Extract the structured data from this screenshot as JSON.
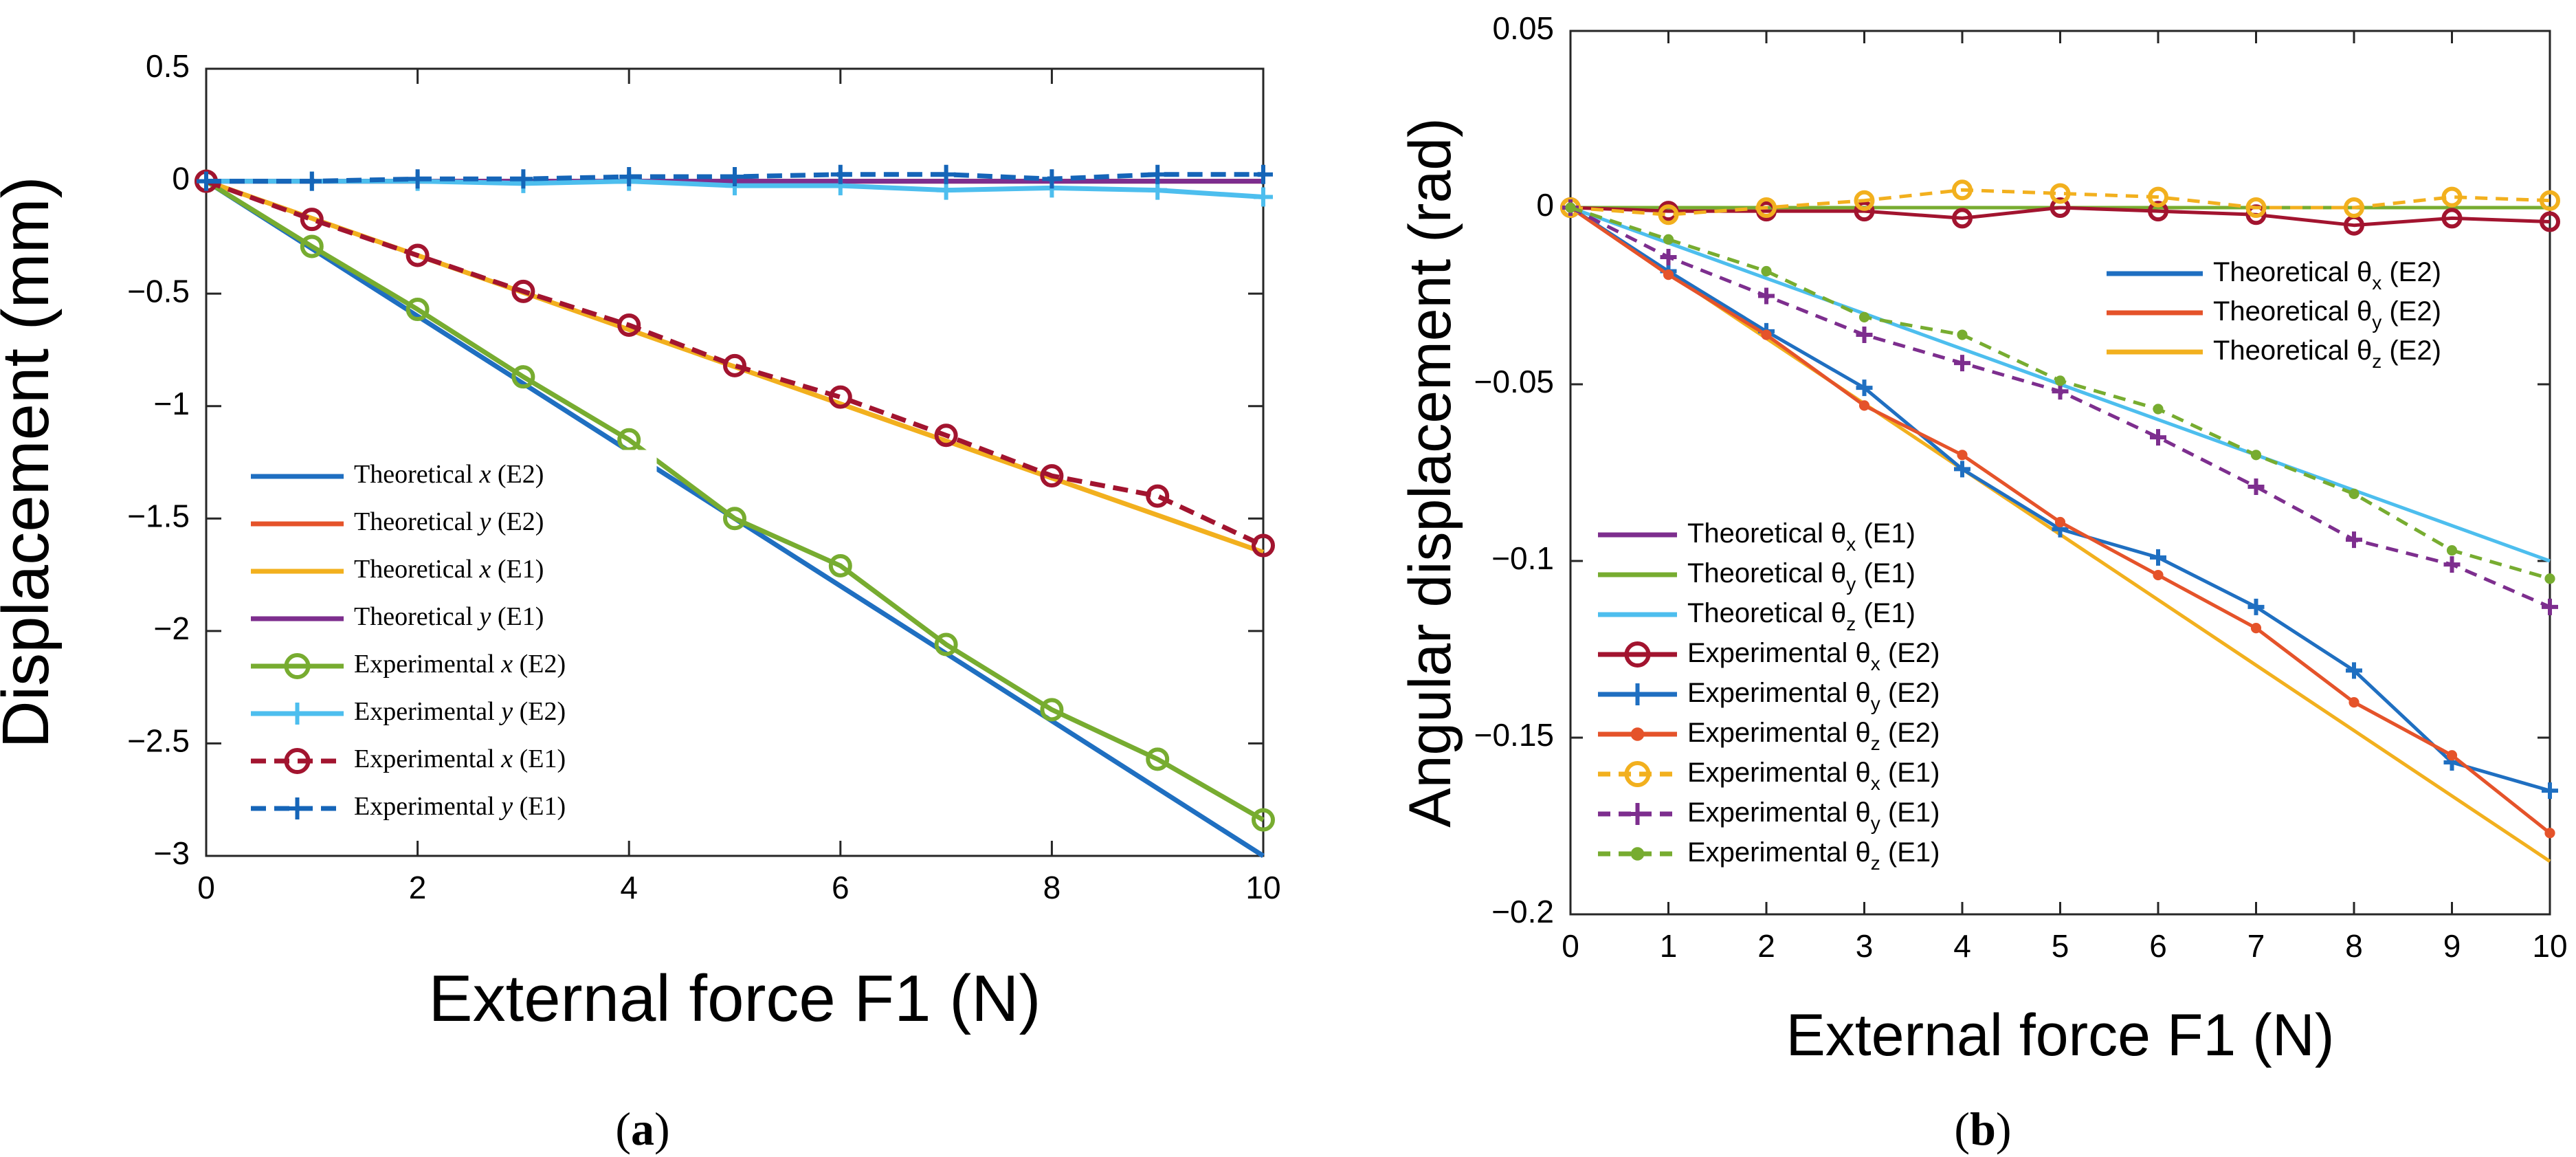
{
  "chart_data": [
    {
      "panel": "(a)",
      "type": "line",
      "xlabel": "External force F1 (N)",
      "ylabel": "Displacement (mm)",
      "xlim": [
        0,
        10
      ],
      "ylim": [
        -3,
        0.5
      ],
      "xticks": [
        "0",
        "2",
        "4",
        "6",
        "8",
        "10"
      ],
      "yticks": [
        "0.5",
        "0",
        "-0.5",
        "-1",
        "-1.5",
        "-2",
        "-2.5",
        "-3"
      ],
      "ytick_values": [
        0.5,
        0,
        -0.5,
        -1,
        -1.5,
        -2,
        -2.5,
        -3
      ],
      "grid": false,
      "legend_position": "lower-left",
      "series": [
        {
          "name": "Theoretical x (E2)",
          "base": "Theoretical ",
          "var": "x",
          "tag": " (E2)",
          "color": "#1f6fc1",
          "dash": "",
          "marker": "none",
          "x": [
            0,
            10
          ],
          "y": [
            0,
            -3.0
          ]
        },
        {
          "name": "Theoretical y (E2)",
          "base": "Theoretical ",
          "var": "y",
          "tag": " (E2)",
          "color": "#e5532a",
          "dash": "",
          "marker": "none",
          "x": [
            0,
            10
          ],
          "y": [
            0,
            0
          ]
        },
        {
          "name": "Theoretical x (E1)",
          "base": "Theoretical ",
          "var": "x",
          "tag": " (E1)",
          "color": "#f2b01e",
          "dash": "",
          "marker": "none",
          "x": [
            0,
            10
          ],
          "y": [
            0,
            -1.65
          ]
        },
        {
          "name": "Theoretical y (E1)",
          "base": "Theoretical ",
          "var": "y",
          "tag": " (E1)",
          "color": "#7d2e8e",
          "dash": "",
          "marker": "none",
          "x": [
            0,
            10
          ],
          "y": [
            0,
            0
          ]
        },
        {
          "name": "Experimental x (E2)",
          "base": "Experimental ",
          "var": "x",
          "tag": " (E2)",
          "color": "#77ac30",
          "dash": "",
          "marker": "circle",
          "x": [
            0,
            1,
            2,
            3,
            4,
            5,
            6,
            7,
            8,
            9,
            10
          ],
          "y": [
            0,
            -0.29,
            -0.57,
            -0.87,
            -1.15,
            -1.5,
            -1.71,
            -2.06,
            -2.35,
            -2.57,
            -2.84
          ]
        },
        {
          "name": "Experimental y (E2)",
          "base": "Experimental ",
          "var": "y",
          "tag": " (E2)",
          "color": "#4dbeee",
          "dash": "",
          "marker": "plus",
          "x": [
            0,
            1,
            2,
            3,
            4,
            5,
            6,
            7,
            8,
            9,
            10
          ],
          "y": [
            0,
            0,
            0,
            -0.01,
            0,
            -0.02,
            -0.02,
            -0.04,
            -0.03,
            -0.04,
            -0.07
          ]
        },
        {
          "name": "Experimental x (E1)",
          "base": "Experimental ",
          "var": "x",
          "tag": " (E1)",
          "color": "#a2142f",
          "dash": "22,12",
          "marker": "circle",
          "x": [
            0,
            1,
            2,
            3,
            4,
            5,
            6,
            7,
            8,
            9,
            10
          ],
          "y": [
            0,
            -0.17,
            -0.33,
            -0.49,
            -0.64,
            -0.82,
            -0.96,
            -1.13,
            -1.31,
            -1.4,
            -1.62
          ]
        },
        {
          "name": "Experimental y (E1)",
          "base": "Experimental ",
          "var": "y",
          "tag": " (E1)",
          "color": "#1565b8",
          "dash": "22,12",
          "marker": "plus",
          "x": [
            0,
            1,
            2,
            3,
            4,
            5,
            6,
            7,
            8,
            9,
            10
          ],
          "y": [
            0,
            0,
            0.01,
            0.01,
            0.02,
            0.02,
            0.03,
            0.03,
            0.01,
            0.03,
            0.03
          ]
        }
      ]
    },
    {
      "panel": "(b)",
      "type": "line",
      "xlabel": "External force F1 (N)",
      "ylabel": "Angular displacement (rad)",
      "xlim": [
        0,
        10
      ],
      "ylim": [
        -0.2,
        0.05
      ],
      "xticks": [
        "0",
        "1",
        "2",
        "3",
        "4",
        "5",
        "6",
        "7",
        "8",
        "9",
        "10"
      ],
      "yticks": [
        "0.05",
        "0",
        "-0.05",
        "-0.1",
        "-0.15",
        "-0.2"
      ],
      "ytick_values": [
        0.05,
        0,
        -0.05,
        -0.1,
        -0.15,
        -0.2
      ],
      "grid": false,
      "legend_position": "top-right and lower-left",
      "series": [
        {
          "name": "Theoretical θx (E2)",
          "base": "Theoretical θ",
          "sub": "x",
          "tag": " (E2)",
          "color": "#1f6fc1",
          "dash": "",
          "marker": "none",
          "legend": "top",
          "x": [
            0,
            10
          ],
          "y": [
            0,
            0
          ]
        },
        {
          "name": "Theoretical θy (E2)",
          "base": "Theoretical θ",
          "sub": "y",
          "tag": " (E2)",
          "color": "#e5532a",
          "dash": "",
          "marker": "none",
          "legend": "top",
          "x": [
            0,
            10
          ],
          "y": [
            0,
            0
          ]
        },
        {
          "name": "Theoretical θz (E2)",
          "base": "Theoretical θ",
          "sub": "z",
          "tag": " (E2)",
          "color": "#f2b01e",
          "dash": "",
          "marker": "none",
          "legend": "top",
          "x": [
            0,
            10
          ],
          "y": [
            0,
            -0.185
          ]
        },
        {
          "name": "Theoretical θx (E1)",
          "base": "Theoretical θ",
          "sub": "x",
          "tag": " (E1)",
          "color": "#7d2e8e",
          "dash": "",
          "marker": "none",
          "legend": "bottom",
          "x": [
            0,
            10
          ],
          "y": [
            0,
            0
          ]
        },
        {
          "name": "Theoretical θy (E1)",
          "base": "Theoretical θ",
          "sub": "y",
          "tag": " (E1)",
          "color": "#77ac30",
          "dash": "",
          "marker": "none",
          "legend": "bottom",
          "x": [
            0,
            10
          ],
          "y": [
            0,
            0
          ]
        },
        {
          "name": "Theoretical θz (E1)",
          "base": "Theoretical θ",
          "sub": "z",
          "tag": " (E1)",
          "color": "#4dbeee",
          "dash": "",
          "marker": "none",
          "legend": "bottom",
          "x": [
            0,
            10
          ],
          "y": [
            0,
            -0.1
          ]
        },
        {
          "name": "Experimental θx (E2)",
          "base": "Experimental θ",
          "sub": "x",
          "tag": " (E2)",
          "color": "#a2142f",
          "dash": "",
          "marker": "circle",
          "legend": "bottom",
          "x": [
            0,
            1,
            2,
            3,
            4,
            5,
            6,
            7,
            8,
            9,
            10
          ],
          "y": [
            0,
            -0.001,
            -0.001,
            -0.001,
            -0.003,
            0,
            -0.001,
            -0.002,
            -0.005,
            -0.003,
            -0.004
          ]
        },
        {
          "name": "Experimental θy (E2)",
          "base": "Experimental θ",
          "sub": "y",
          "tag": " (E2)",
          "color": "#1f6fc1",
          "dash": "",
          "marker": "plus",
          "legend": "bottom",
          "x": [
            0,
            1,
            2,
            3,
            4,
            5,
            6,
            7,
            8,
            9,
            10
          ],
          "y": [
            0,
            -0.018,
            -0.035,
            -0.051,
            -0.074,
            -0.091,
            -0.099,
            -0.113,
            -0.131,
            -0.157,
            -0.165
          ]
        },
        {
          "name": "Experimental θz (E2)",
          "base": "Experimental θ",
          "sub": "z",
          "tag": " (E2)",
          "color": "#e5532a",
          "dash": "",
          "marker": "dot",
          "legend": "bottom",
          "x": [
            0,
            1,
            2,
            3,
            4,
            5,
            6,
            7,
            8,
            9,
            10
          ],
          "y": [
            0,
            -0.019,
            -0.036,
            -0.056,
            -0.07,
            -0.089,
            -0.104,
            -0.119,
            -0.14,
            -0.155,
            -0.177
          ]
        },
        {
          "name": "Experimental θx (E1)",
          "base": "Experimental θ",
          "sub": "x",
          "tag": " (E1)",
          "color": "#f2b01e",
          "dash": "18,12",
          "marker": "circle",
          "legend": "bottom",
          "x": [
            0,
            1,
            2,
            3,
            4,
            5,
            6,
            7,
            8,
            9,
            10
          ],
          "y": [
            0,
            -0.002,
            0,
            0.002,
            0.005,
            0.004,
            0.003,
            0,
            0,
            0.003,
            0.002
          ]
        },
        {
          "name": "Experimental θy (E1)",
          "base": "Experimental θ",
          "sub": "y",
          "tag": " (E1)",
          "color": "#7d2e8e",
          "dash": "18,12",
          "marker": "plus",
          "legend": "bottom",
          "x": [
            0,
            1,
            2,
            3,
            4,
            5,
            6,
            7,
            8,
            9,
            10
          ],
          "y": [
            0,
            -0.014,
            -0.025,
            -0.036,
            -0.044,
            -0.052,
            -0.065,
            -0.079,
            -0.094,
            -0.101,
            -0.113
          ]
        },
        {
          "name": "Experimental θz (E1)",
          "base": "Experimental θ",
          "sub": "z",
          "tag": " (E1)",
          "color": "#77ac30",
          "dash": "18,12",
          "marker": "dot",
          "legend": "bottom",
          "x": [
            0,
            1,
            2,
            3,
            4,
            5,
            6,
            7,
            8,
            9,
            10
          ],
          "y": [
            0,
            -0.009,
            -0.018,
            -0.031,
            -0.036,
            -0.049,
            -0.057,
            -0.07,
            -0.081,
            -0.097,
            -0.105
          ]
        }
      ]
    }
  ]
}
